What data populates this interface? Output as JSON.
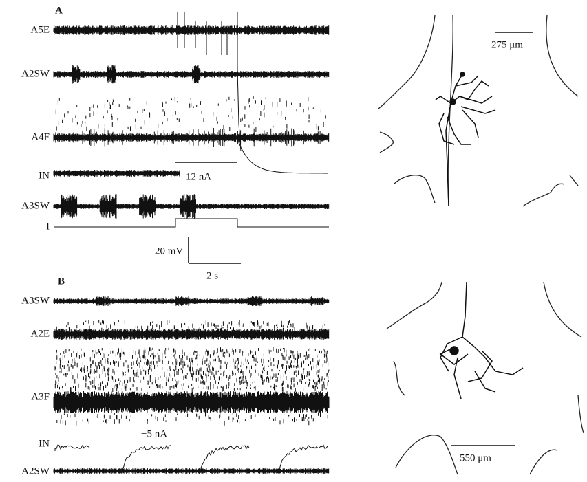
{
  "panel_a": {
    "label": "A",
    "traces": [
      "A5E",
      "A2SW",
      "A4F",
      "IN",
      "A3SW",
      "I"
    ],
    "current_label": "12 nA",
    "voltage_scale": "20 mV",
    "time_scale": "2 s"
  },
  "panel_b": {
    "label": "B",
    "traces": [
      "A3SW",
      "A2E",
      "A3F",
      "IN",
      "A2SW"
    ],
    "current_label": "−5 nA"
  },
  "morphology": {
    "scale_top": "275 μm",
    "scale_bottom": "550 μm"
  }
}
